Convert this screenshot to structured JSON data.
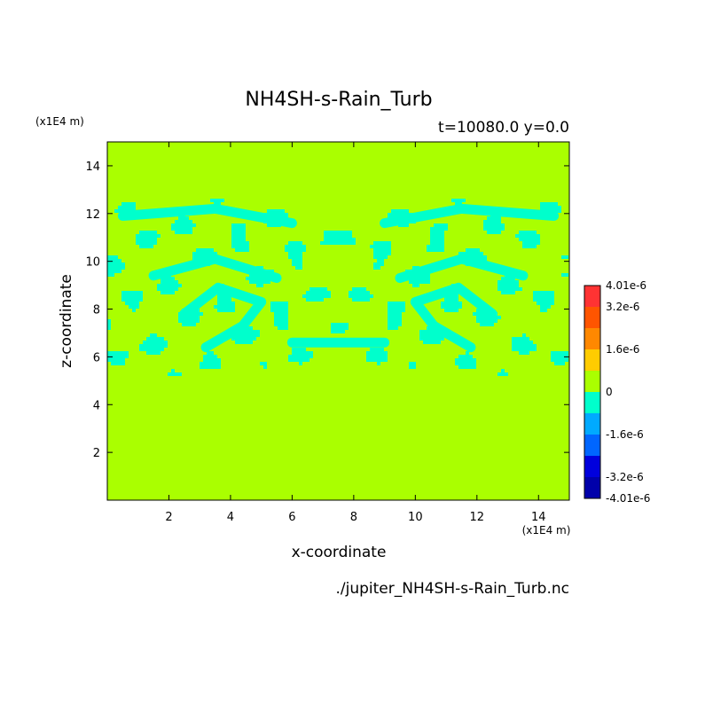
{
  "chart_data": {
    "type": "heatmap",
    "title": "NH4SH-s-Rain_Turb",
    "subtitle": "t=10080.0 y=0.0",
    "xlabel": "x-coordinate",
    "ylabel": "z-coordinate",
    "x_unit": "(x1E4 m)",
    "y_unit": "(x1E4 m)",
    "source_file": "./jupiter_NH4SH-s-Rain_Turb.nc",
    "xlim": [
      0,
      15
    ],
    "ylim": [
      0,
      15
    ],
    "x_ticks": [
      2,
      4,
      6,
      8,
      10,
      12,
      14
    ],
    "y_ticks": [
      2,
      4,
      6,
      8,
      10,
      12,
      14
    ],
    "background_level_color": "#aaff00",
    "anomaly_color": "#00ffcc",
    "anomaly_value_estimate": -8e-07,
    "anomaly_band_z_range": [
      5.2,
      12.6
    ],
    "colorbar": {
      "min": -4.01e-06,
      "max": 4.01e-06,
      "labels": [
        "4.01e-6",
        "3.2e-6",
        "1.6e-6",
        "0",
        "-1.6e-6",
        "-3.2e-6",
        "-4.01e-6"
      ],
      "label_values": [
        4.01e-06,
        3.2e-06,
        1.6e-06,
        0,
        -1.6e-06,
        -3.2e-06,
        -4.01e-06
      ],
      "colors": [
        "#0000aa",
        "#0000dd",
        "#0066ff",
        "#00aaff",
        "#00ffcc",
        "#aaff00",
        "#ffcc00",
        "#ff8800",
        "#ff5500",
        "#ff3333"
      ]
    }
  }
}
